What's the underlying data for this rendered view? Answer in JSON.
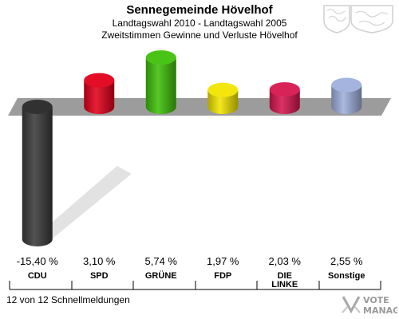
{
  "header": {
    "title": "Sennegemeinde Hövelhof",
    "subtitle1": "Landtagswahl 2010 - Landtagswahl 2005",
    "subtitle2": "Zweitstimmen Gewinne und Verluste Hövelhof"
  },
  "footer": {
    "text": "12 von 12 Schnellmeldungen"
  },
  "logo": {
    "line1": "VOTE",
    "line2": "MANAGER"
  },
  "chart_data": {
    "type": "bar",
    "categories": [
      "CDU",
      "SPD",
      "GRÜNE",
      "FDP",
      "DIE LINKE",
      "Sonstige"
    ],
    "category_lines": [
      [
        "CDU"
      ],
      [
        "SPD"
      ],
      [
        "GRÜNE"
      ],
      [
        "FDP"
      ],
      [
        "DIE",
        "LINKE"
      ],
      [
        "Sonstige"
      ]
    ],
    "values": [
      -15.4,
      3.1,
      5.74,
      1.97,
      2.03,
      2.55
    ],
    "value_labels": [
      "-15,40 %",
      "3,10 %",
      "5,74 %",
      "1,97 %",
      "2,03 %",
      "2,55 %"
    ],
    "colors": [
      "#3a3a3a",
      "#e3001b",
      "#3fc10a",
      "#f2e500",
      "#d7174f",
      "#a0b0dd"
    ],
    "title": "Sennegemeinde Hövelhof",
    "subtitle": "Zweitstimmen Gewinne und Verluste Hövelhof",
    "ylim": [
      -15.4,
      5.74
    ],
    "grid": false,
    "legend": "none"
  }
}
